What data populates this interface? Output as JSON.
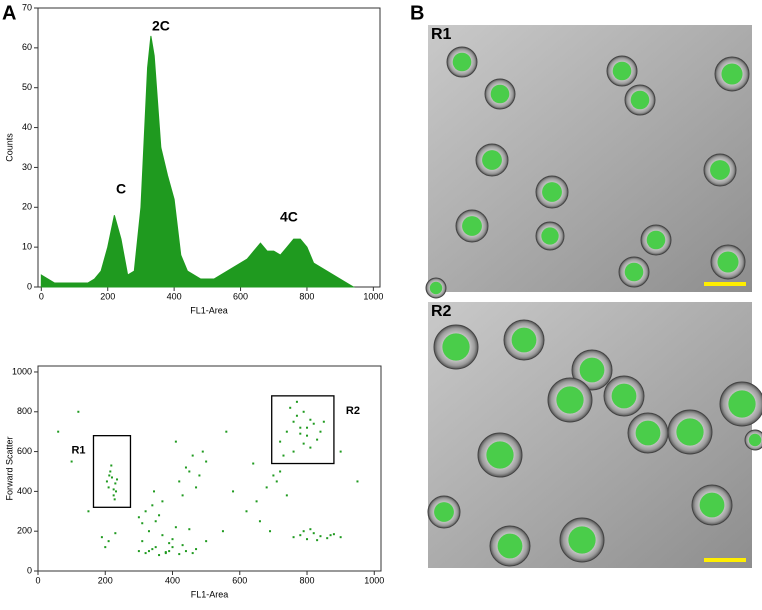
{
  "chart_data": [
    {
      "type": "area",
      "x_label": "FL1-Area",
      "y_label": "Counts",
      "color": "#1f9a1f",
      "x": [
        0,
        20,
        40,
        60,
        80,
        100,
        120,
        140,
        160,
        180,
        200,
        220,
        240,
        260,
        280,
        300,
        320,
        330,
        340,
        360,
        380,
        400,
        420,
        440,
        460,
        480,
        500,
        520,
        540,
        560,
        580,
        600,
        620,
        640,
        660,
        680,
        700,
        720,
        740,
        760,
        780,
        800,
        820,
        840,
        860,
        880,
        900,
        920,
        940
      ],
      "values": [
        3,
        2,
        1,
        1,
        1,
        1,
        1,
        1,
        2,
        4,
        10,
        18,
        12,
        3,
        4,
        20,
        55,
        63,
        58,
        35,
        28,
        22,
        8,
        4,
        3,
        2,
        2,
        2,
        3,
        4,
        5,
        6,
        7,
        9,
        11,
        9,
        9,
        8,
        10,
        12,
        12,
        10,
        6,
        5,
        4,
        3,
        2,
        1,
        0
      ],
      "xlim": [
        -10,
        1020
      ],
      "ylim": [
        0,
        70
      ],
      "xticks": [
        0,
        200,
        400,
        600,
        800,
        1000
      ],
      "yticks": [
        0,
        10,
        20,
        30,
        40,
        50,
        60,
        70
      ],
      "annotations": [
        "C",
        "2C",
        "4C"
      ]
    },
    {
      "type": "scatter",
      "x_label": "FL1-Area",
      "y_label": "Forward Scatter",
      "color": "#1f9a1f",
      "x": [
        210,
        220,
        230,
        215,
        225,
        235,
        205,
        225,
        218,
        232,
        212,
        228,
        190,
        210,
        230,
        200,
        300,
        320,
        340,
        360,
        380,
        400,
        420,
        440,
        310,
        330,
        350,
        370,
        390,
        410,
        430,
        320,
        340,
        360,
        380,
        400,
        330,
        350,
        370,
        450,
        470,
        300,
        310,
        460,
        390,
        345,
        420,
        440,
        460,
        480,
        500,
        430,
        470,
        490,
        410,
        450,
        720,
        740,
        760,
        780,
        800,
        820,
        840,
        750,
        770,
        790,
        810,
        830,
        760,
        780,
        800,
        730,
        850,
        790,
        770,
        810,
        620,
        650,
        680,
        700,
        720,
        740,
        660,
        690,
        710,
        640,
        760,
        780,
        800,
        820,
        840,
        860,
        880,
        900,
        790,
        830,
        870,
        810,
        60,
        100,
        150,
        500,
        550,
        580,
        900,
        950,
        120,
        560
      ],
      "y": [
        420,
        470,
        440,
        500,
        380,
        460,
        450,
        410,
        530,
        400,
        480,
        360,
        170,
        150,
        190,
        120,
        100,
        90,
        110,
        80,
        95,
        120,
        85,
        100,
        150,
        200,
        250,
        180,
        140,
        220,
        130,
        300,
        330,
        280,
        90,
        160,
        100,
        120,
        350,
        210,
        110,
        270,
        240,
        90,
        100,
        400,
        450,
        520,
        580,
        480,
        550,
        380,
        420,
        600,
        650,
        500,
        650,
        700,
        750,
        720,
        680,
        740,
        700,
        820,
        780,
        640,
        760,
        660,
        600,
        690,
        720,
        580,
        750,
        800,
        850,
        620,
        300,
        350,
        420,
        480,
        500,
        380,
        250,
        200,
        450,
        540,
        170,
        180,
        160,
        190,
        175,
        165,
        185,
        170,
        200,
        155,
        180,
        210,
        700,
        550,
        300,
        150,
        200,
        400,
        600,
        450,
        800,
        700
      ],
      "xlim": [
        0,
        1020
      ],
      "ylim": [
        0,
        1030
      ],
      "xticks": [
        0,
        200,
        400,
        600,
        800,
        1000
      ],
      "yticks": [
        0,
        200,
        400,
        600,
        800,
        1000
      ],
      "gates": [
        {
          "label": "R1",
          "x": [
            165,
            275
          ],
          "y": [
            320,
            680
          ]
        },
        {
          "label": "R2",
          "x": [
            695,
            880
          ],
          "y": [
            540,
            880
          ]
        }
      ]
    }
  ],
  "panels": [
    "A",
    "B"
  ],
  "images": [
    {
      "label": "R1"
    },
    {
      "label": "R2"
    }
  ]
}
